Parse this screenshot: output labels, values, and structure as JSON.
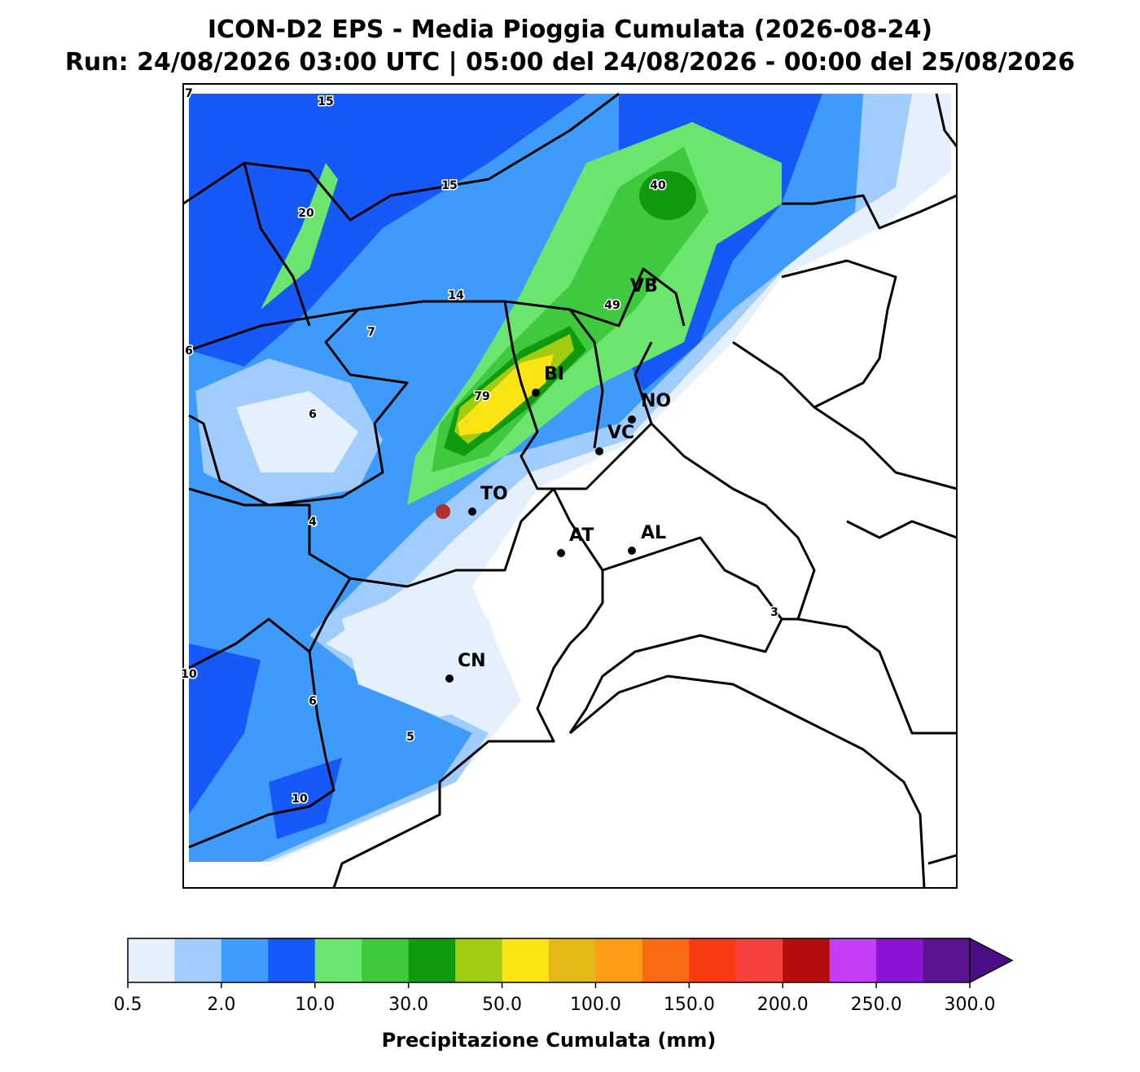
{
  "header": {
    "title": "ICON-D2 EPS - Media Pioggia Cumulata (2026-08-24)",
    "subtitle": "Run: 24/08/2026 03:00 UTC | 05:00 del 24/08/2026 - 00:00 del 25/08/2026"
  },
  "cities": [
    "TO",
    "BI",
    "VB",
    "NO",
    "VC",
    "AT",
    "AL",
    "CN"
  ],
  "contour_labels": [
    "7",
    "15",
    "15",
    "40",
    "20",
    "14",
    "49",
    "7",
    "6",
    "79",
    "6",
    "4",
    "3",
    "10",
    "6",
    "5",
    "10"
  ],
  "colorbar": {
    "label": "Precipitazione Cumulata (mm)",
    "ticks": [
      "0.5",
      "2.0",
      "10.0",
      "30.0",
      "50.0",
      "100.0",
      "150.0",
      "200.0",
      "250.0",
      "300.0"
    ],
    "colors": [
      "#e5f0fd",
      "#a0cdfd",
      "#3f9bfb",
      "#1758f9",
      "#6be56d",
      "#3ec93e",
      "#0f9a10",
      "#a2cc12",
      "#fbe414",
      "#e5b915",
      "#fb9c14",
      "#f96a14",
      "#f83a12",
      "#f7413f",
      "#b50c0e",
      "#c33ef6",
      "#8a13d4",
      "#591290"
    ],
    "extend_color": "#4c0e87"
  }
}
